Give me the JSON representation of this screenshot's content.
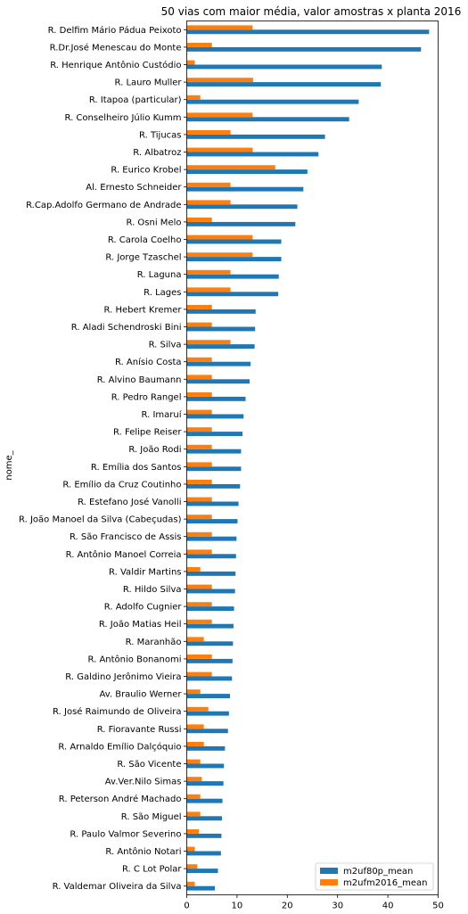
{
  "chart_data": {
    "type": "bar",
    "orientation": "horizontal",
    "title": "50 vias com maior média, valor amostras x planta 2016",
    "xlabel": "",
    "ylabel": "nome_",
    "xlim": [
      0,
      50
    ],
    "xticks": [
      0,
      10,
      20,
      30,
      40,
      50
    ],
    "grid": false,
    "legend_position": "bottom-right",
    "categories": [
      "R. Delfim Mário Pádua Peixoto",
      "R.Dr.José Menescau do Monte",
      "R. Henrique Antônio Custódio",
      "R. Lauro Muller",
      "R. Itapoa (particular)",
      "R. Conselheiro Júlio Kumm",
      "R. Tijucas",
      "R. Albatroz",
      "R. Eurico Krobel",
      "Al. Ernesto Schneider",
      "R.Cap.Adolfo Germano de Andrade",
      "R. Osni Melo",
      "R. Carola Coelho",
      "R. Jorge Tzaschel",
      "R. Laguna",
      "R. Lages",
      "R. Hebert Kremer",
      "R. Aladi Schendroski Bini",
      "R. Silva",
      "R. Anísio Costa",
      "R. Alvino Baumann",
      "R. Pedro Rangel",
      "R. Imaruí",
      "R. Felipe Reiser",
      "R. João Rodi",
      "R. Emília dos Santos",
      "R. Emílio da Cruz Coutinho",
      "R. Estefano José Vanolli",
      "R. João Manoel da Silva (Cabeçudas)",
      "R. São Francisco de Assis",
      "R. Antônio Manoel Correia",
      "R. Valdir Martins",
      "R. Hildo Silva",
      "R. Adolfo Cugnier",
      "R. João Matias Heil",
      "R. Maranhão",
      "R. Antônio Bonanomi",
      "R. Galdino Jerônimo Vieira",
      "Av. Braulio Werner",
      "R. José Raimundo de Oliveira",
      "R. Fioravante Russi",
      "R. Arnaldo Emílio Dalçóquio",
      "R. São Vicente",
      "Av.Ver.Nilo Simas",
      "R. Peterson André Machado",
      "R. São Miguel",
      "R. Paulo Valmor Severino",
      "R. Antônio Notari",
      "R. C Lot Polar",
      "R. Valdemar Oliveira da Silva"
    ],
    "series": [
      {
        "name": "m2uf80p_mean",
        "color": "#1f77b4",
        "values": [
          48.2,
          46.6,
          38.8,
          38.6,
          34.2,
          32.3,
          27.5,
          26.2,
          24.0,
          23.2,
          22.0,
          21.6,
          18.8,
          18.8,
          18.3,
          18.2,
          13.7,
          13.6,
          13.5,
          12.7,
          12.5,
          11.7,
          11.3,
          11.1,
          10.8,
          10.8,
          10.6,
          10.3,
          10.1,
          9.9,
          9.8,
          9.7,
          9.6,
          9.4,
          9.3,
          9.2,
          9.1,
          9.0,
          8.6,
          8.4,
          8.2,
          7.6,
          7.4,
          7.3,
          7.1,
          7.0,
          6.9,
          6.8,
          6.2,
          5.6
        ]
      },
      {
        "name": "m2ufm2016_mean",
        "color": "#ff7f0e",
        "values": [
          13.1,
          5.0,
          1.6,
          13.2,
          2.7,
          13.1,
          8.7,
          13.1,
          17.6,
          8.7,
          8.7,
          5.0,
          13.1,
          13.1,
          8.7,
          8.7,
          5.0,
          5.0,
          8.7,
          5.0,
          5.0,
          5.0,
          5.0,
          5.0,
          5.0,
          5.0,
          5.0,
          5.0,
          5.0,
          5.0,
          5.0,
          2.7,
          5.0,
          5.0,
          5.0,
          3.4,
          5.0,
          5.0,
          2.7,
          4.3,
          3.4,
          3.4,
          2.7,
          3.0,
          2.7,
          2.7,
          2.4,
          1.6,
          2.1,
          1.6
        ]
      }
    ]
  }
}
